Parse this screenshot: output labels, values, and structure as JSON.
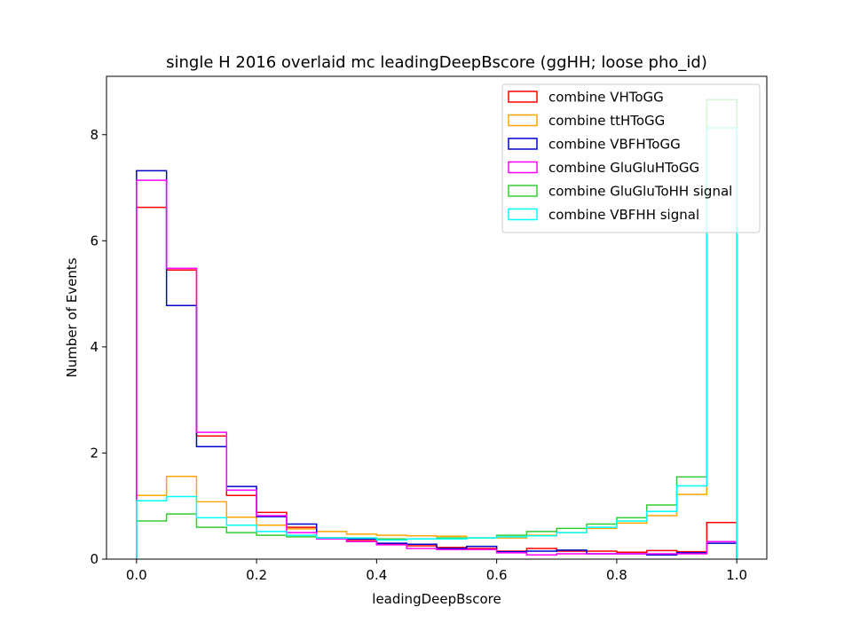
{
  "chart_data": {
    "type": "histogram-step",
    "title": "single H 2016 overlaid mc leadingDeepBscore (ggHH; loose pho_id)",
    "xlabel": "leadingDeepBscore",
    "ylabel": "Number of Events",
    "xlim": [
      -0.05,
      1.05
    ],
    "ylim": [
      0,
      9.1
    ],
    "xticks": [
      0.0,
      0.2,
      0.4,
      0.6,
      0.8,
      1.0
    ],
    "xtick_labels": [
      "0.0",
      "0.2",
      "0.4",
      "0.6",
      "0.8",
      "1.0"
    ],
    "yticks": [
      0,
      2,
      4,
      6,
      8
    ],
    "ytick_labels": [
      "0",
      "2",
      "4",
      "6",
      "8"
    ],
    "bin_edges": [
      0.0,
      0.05,
      0.1,
      0.15,
      0.2,
      0.25,
      0.3,
      0.35,
      0.4,
      0.45,
      0.5,
      0.55,
      0.6,
      0.65,
      0.7,
      0.75,
      0.8,
      0.85,
      0.9,
      0.95,
      1.0
    ],
    "legend_position": "upper right",
    "series": [
      {
        "name": "combine VHToGG",
        "color": "#ff0000",
        "values": [
          6.63,
          5.45,
          2.32,
          1.2,
          0.88,
          0.6,
          0.4,
          0.35,
          0.28,
          0.25,
          0.22,
          0.2,
          0.15,
          0.2,
          0.15,
          0.15,
          0.13,
          0.16,
          0.14,
          0.69
        ]
      },
      {
        "name": "combine ttHToGG",
        "color": "#ffa500",
        "values": [
          1.2,
          1.56,
          1.08,
          0.79,
          0.64,
          0.57,
          0.52,
          0.47,
          0.45,
          0.44,
          0.43,
          0.4,
          0.4,
          0.45,
          0.5,
          0.58,
          0.68,
          0.82,
          1.22,
          8.13
        ]
      },
      {
        "name": "combine VBFHToGG",
        "color": "#0000cd",
        "values": [
          7.32,
          4.78,
          2.12,
          1.37,
          0.8,
          0.66,
          0.4,
          0.38,
          0.3,
          0.28,
          0.2,
          0.24,
          0.14,
          0.15,
          0.17,
          0.1,
          0.1,
          0.08,
          0.12,
          0.3
        ]
      },
      {
        "name": "combine GluGluHToGG",
        "color": "#ff00ff",
        "values": [
          7.14,
          5.48,
          2.39,
          1.3,
          0.82,
          0.5,
          0.38,
          0.33,
          0.27,
          0.2,
          0.18,
          0.18,
          0.12,
          0.08,
          0.1,
          0.1,
          0.1,
          0.1,
          0.1,
          0.33
        ]
      },
      {
        "name": "combine GluGluToHH signal",
        "color": "#32cd32",
        "values": [
          0.72,
          0.85,
          0.6,
          0.5,
          0.45,
          0.42,
          0.4,
          0.4,
          0.38,
          0.38,
          0.4,
          0.4,
          0.45,
          0.52,
          0.58,
          0.66,
          0.78,
          1.02,
          1.55,
          8.66
        ]
      },
      {
        "name": "combine VBFHH signal",
        "color": "#00ffff",
        "values": [
          1.1,
          1.18,
          0.78,
          0.64,
          0.52,
          0.45,
          0.4,
          0.4,
          0.36,
          0.38,
          0.38,
          0.4,
          0.42,
          0.44,
          0.5,
          0.6,
          0.72,
          0.9,
          1.38,
          8.13
        ]
      }
    ]
  }
}
